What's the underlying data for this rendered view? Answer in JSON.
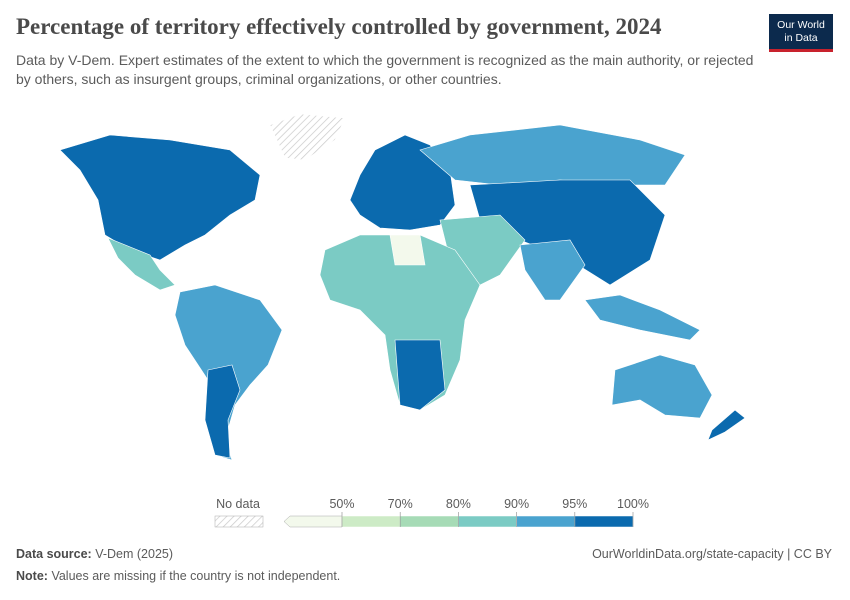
{
  "header": {
    "title": "Percentage of territory effectively controlled by government, 2024",
    "subtitle": "Data by V-Dem. Expert estimates of the extent to which the government is recognized as the main authority, or rejected by others, such as insurgent groups, criminal organizations, or other countries.",
    "logo": [
      "Our World",
      "in Data"
    ]
  },
  "legend": {
    "no_data": "No data",
    "ticks": [
      {
        "value": 50,
        "label": "50%"
      },
      {
        "value": 70,
        "label": "70%"
      },
      {
        "value": 80,
        "label": "80%"
      },
      {
        "value": 90,
        "label": "90%"
      },
      {
        "value": 95,
        "label": "95%"
      },
      {
        "value": 100,
        "label": "100%"
      }
    ],
    "below_color": "#f3f9ec",
    "colors": [
      "#cdebc6",
      "#a6dbb6",
      "#7bcbc4",
      "#4aa3cf",
      "#0b6aae"
    ]
  },
  "footer": {
    "source_label": "Data source:",
    "source": "V-Dem (2025)",
    "url": "OurWorldinData.org/state-capacity | CC BY",
    "note_label": "Note:",
    "note": "Values are missing if the country is not independent."
  }
}
